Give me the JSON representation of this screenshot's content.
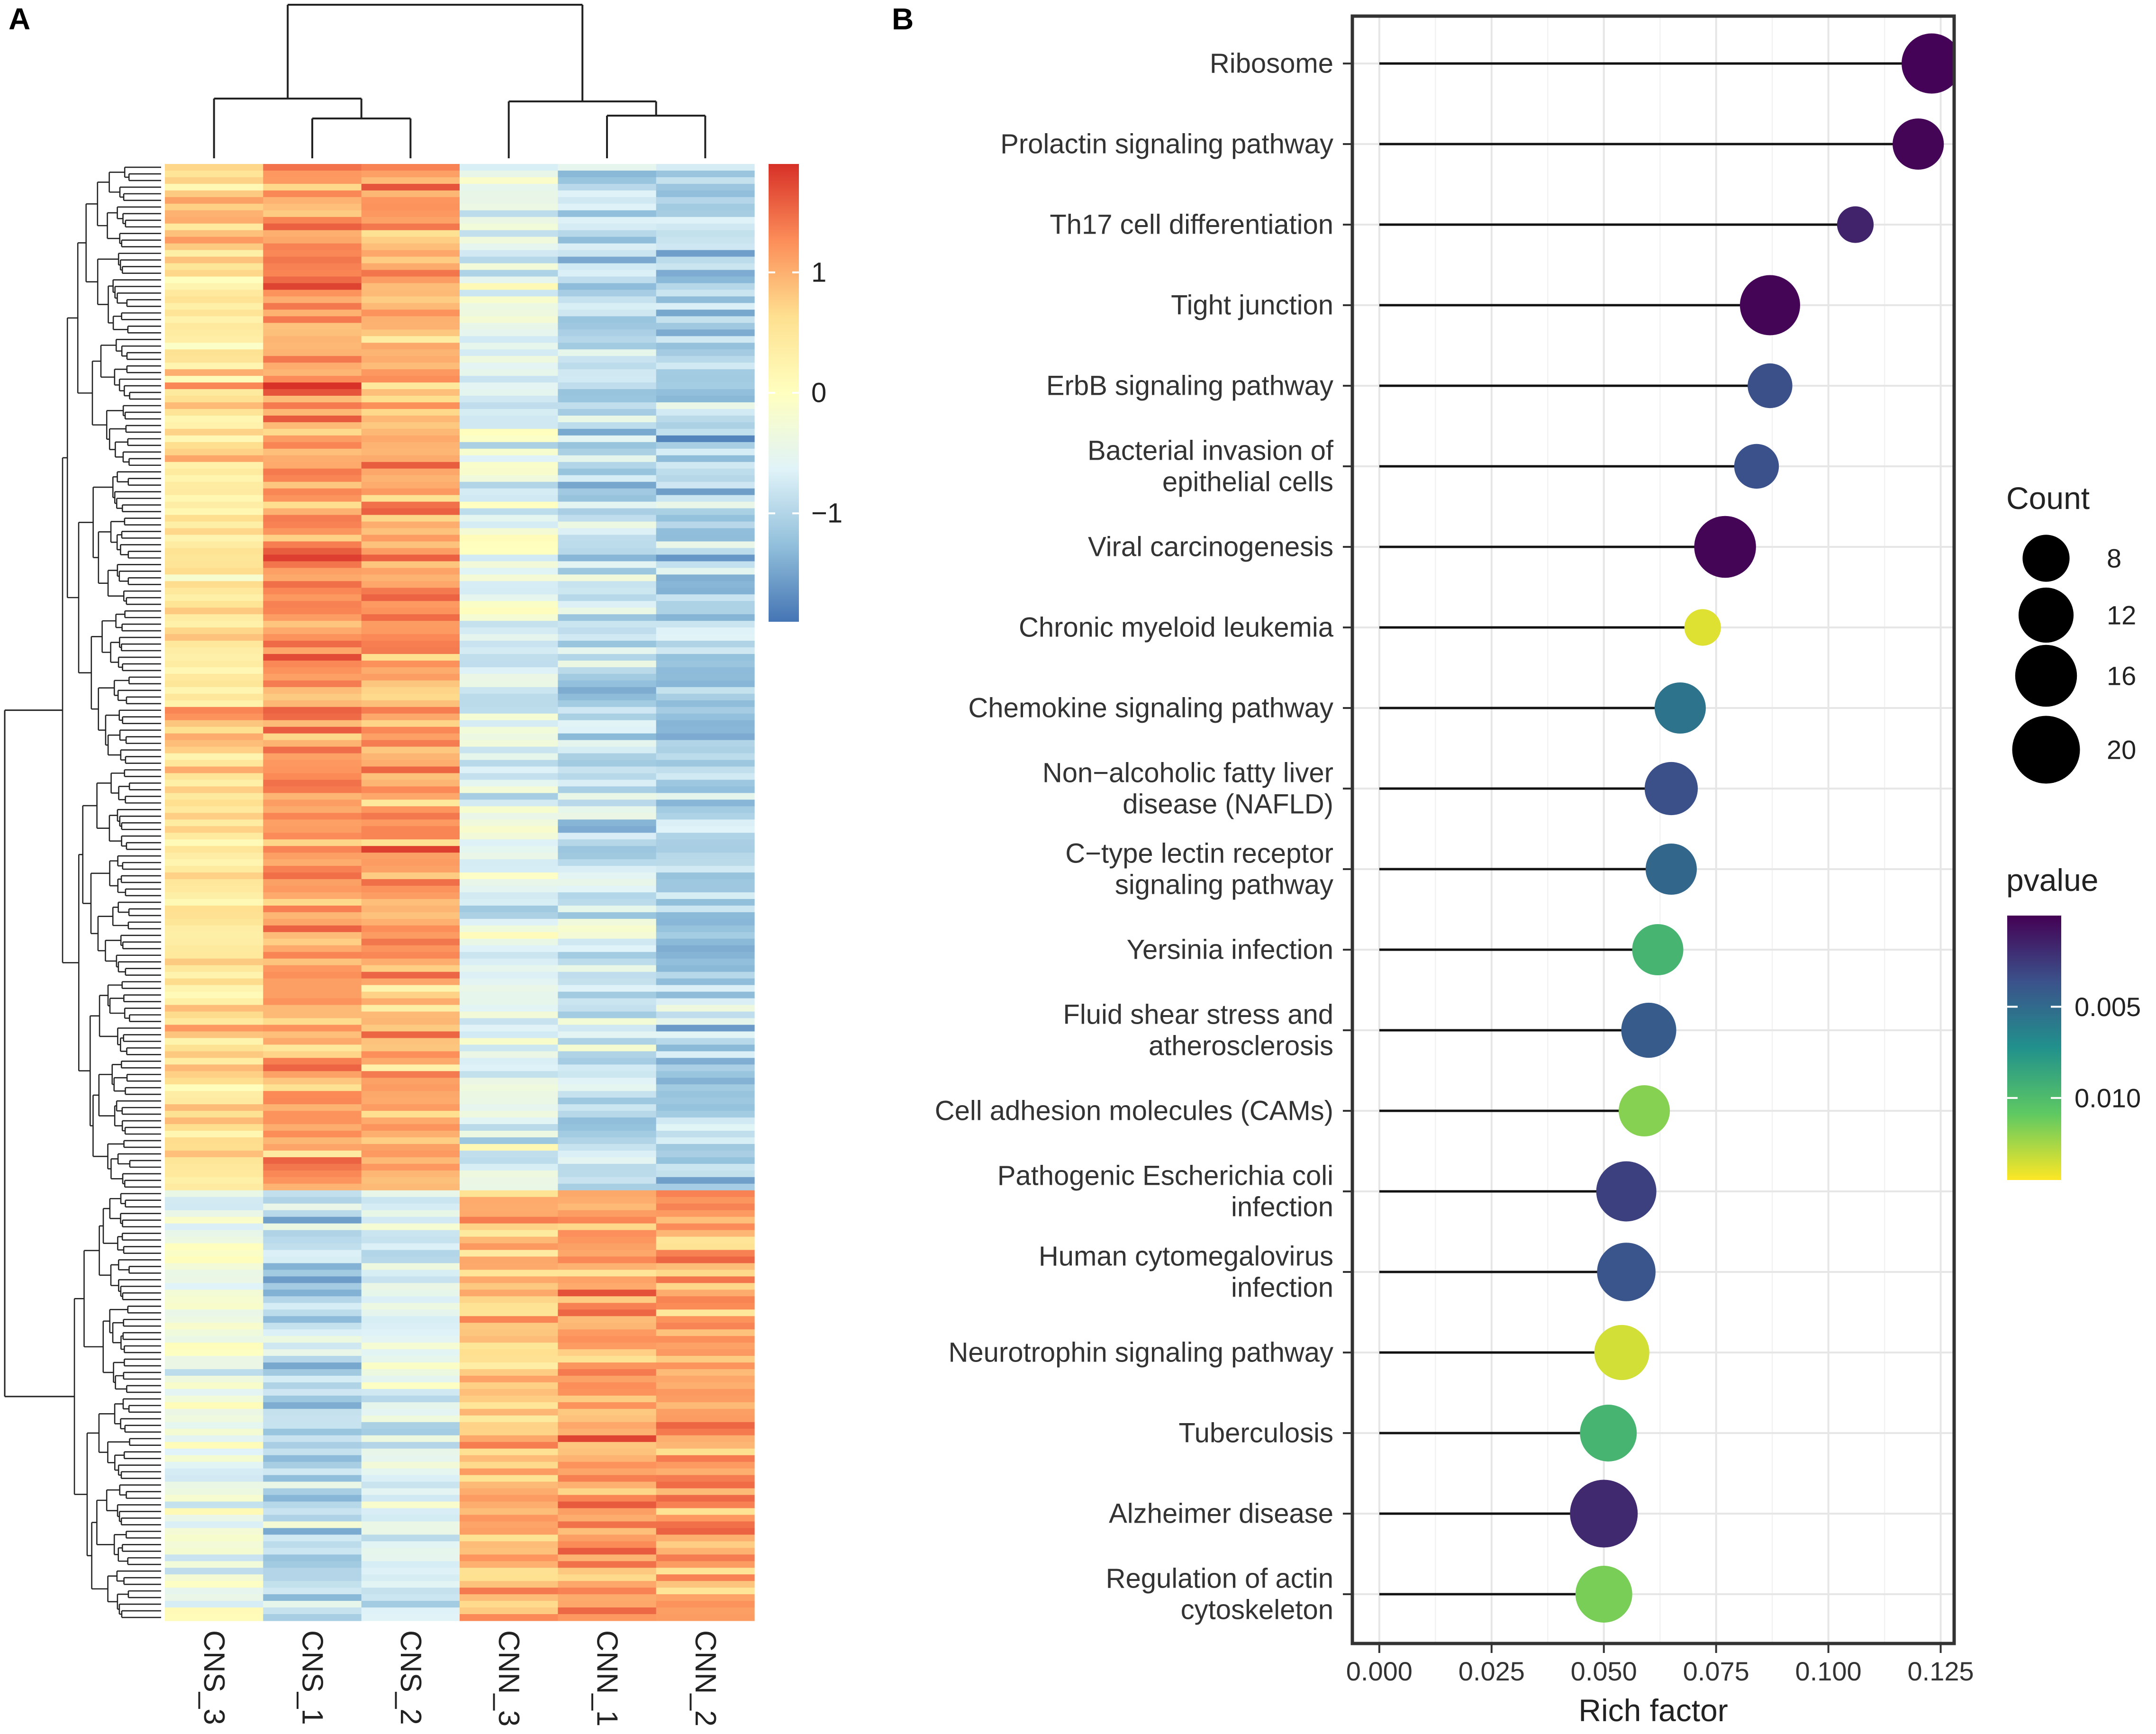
{
  "panel_a": {
    "label": "A",
    "samples": [
      "CNS_3",
      "CNS_1",
      "CNS_2",
      "CNN_3",
      "CNN_1",
      "CNN_2"
    ],
    "legend_ticks": [
      {
        "value": 1,
        "label": "1"
      },
      {
        "value": 0,
        "label": "0"
      },
      {
        "value": -1,
        "label": "−1"
      }
    ],
    "legend_range": [
      -1.9,
      1.9
    ],
    "colors": [
      "#4575b4",
      "#91bfdb",
      "#e0f3f8",
      "#ffffbf",
      "#fee090",
      "#fc8d59",
      "#d73027"
    ]
  },
  "panel_b": {
    "label": "B",
    "chart_data": {
      "type": "scatter",
      "style": "lollipop",
      "xlabel": "Rich factor",
      "ylabel": "",
      "xlim": [
        -0.006,
        0.128
      ],
      "xticks": [
        {
          "value": 0.0,
          "label": "0.000"
        },
        {
          "value": 0.025,
          "label": "0.025"
        },
        {
          "value": 0.05,
          "label": "0.050"
        },
        {
          "value": 0.075,
          "label": "0.075"
        },
        {
          "value": 0.1,
          "label": "0.100"
        },
        {
          "value": 0.125,
          "label": "0.125"
        }
      ],
      "grid": true,
      "legend": {
        "size_title": "Count",
        "size_entries": [
          {
            "value": 8,
            "label": "8"
          },
          {
            "value": 12,
            "label": "12"
          },
          {
            "value": 16,
            "label": "16"
          },
          {
            "value": 20,
            "label": "20"
          }
        ],
        "color_title": "pvalue",
        "color_ticks": [
          {
            "value": 0.005,
            "label": "0.005"
          },
          {
            "value": 0.01,
            "label": "0.010"
          }
        ],
        "color_range": [
          0.0,
          0.0145
        ],
        "placement": "right"
      },
      "colormap": [
        "#440154",
        "#3b528b",
        "#21918c",
        "#5ec962",
        "#fde725"
      ],
      "pathways": [
        {
          "name": [
            "Ribosome"
          ],
          "rich_factor": 0.123,
          "count": 15,
          "pvalue": 0.0001
        },
        {
          "name": [
            "Prolactin signaling pathway"
          ],
          "rich_factor": 0.12,
          "count": 10,
          "pvalue": 0.0002
        },
        {
          "name": [
            "Th17 cell differentiation"
          ],
          "rich_factor": 0.106,
          "count": 4,
          "pvalue": 0.0015
        },
        {
          "name": [
            "Tight junction"
          ],
          "rich_factor": 0.087,
          "count": 15,
          "pvalue": 0.0002
        },
        {
          "name": [
            "ErbB signaling pathway"
          ],
          "rich_factor": 0.087,
          "count": 7,
          "pvalue": 0.0035
        },
        {
          "name": [
            "Bacterial invasion of",
            "epithelial cells"
          ],
          "rich_factor": 0.084,
          "count": 7,
          "pvalue": 0.0036
        },
        {
          "name": [
            "Viral carcinogenesis"
          ],
          "rich_factor": 0.077,
          "count": 16,
          "pvalue": 0.0002
        },
        {
          "name": [
            "Chronic myeloid leukemia"
          ],
          "rich_factor": 0.072,
          "count": 4,
          "pvalue": 0.0138
        },
        {
          "name": [
            "Chemokine signaling pathway"
          ],
          "rich_factor": 0.067,
          "count": 10,
          "pvalue": 0.0055
        },
        {
          "name": [
            "Non−alcoholic fatty liver",
            "disease (NAFLD)"
          ],
          "rich_factor": 0.065,
          "count": 11,
          "pvalue": 0.0035
        },
        {
          "name": [
            "C−type lectin receptor",
            "signaling pathway"
          ],
          "rich_factor": 0.065,
          "count": 10,
          "pvalue": 0.0048
        },
        {
          "name": [
            "Yersinia infection"
          ],
          "rich_factor": 0.062,
          "count": 10,
          "pvalue": 0.0095
        },
        {
          "name": [
            "Fluid shear stress and",
            "atherosclerosis"
          ],
          "rich_factor": 0.06,
          "count": 12,
          "pvalue": 0.0042
        },
        {
          "name": [
            "Cell adhesion molecules (CAMs)"
          ],
          "rich_factor": 0.059,
          "count": 10,
          "pvalue": 0.0118
        },
        {
          "name": [
            "Pathogenic Escherichia coli",
            "infection"
          ],
          "rich_factor": 0.055,
          "count": 15,
          "pvalue": 0.0028
        },
        {
          "name": [
            "Human cytomegalovirus",
            "infection"
          ],
          "rich_factor": 0.055,
          "count": 14,
          "pvalue": 0.0038
        },
        {
          "name": [
            "Neurotrophin signaling pathway"
          ],
          "rich_factor": 0.054,
          "count": 12,
          "pvalue": 0.0135
        },
        {
          "name": [
            "Tuberculosis"
          ],
          "rich_factor": 0.051,
          "count": 13,
          "pvalue": 0.0095
        },
        {
          "name": [
            "Alzheimer disease"
          ],
          "rich_factor": 0.05,
          "count": 20,
          "pvalue": 0.0018
        },
        {
          "name": [
            "Regulation of actin",
            "cytoskeleton"
          ],
          "rich_factor": 0.05,
          "count": 13,
          "pvalue": 0.0115
        }
      ]
    }
  }
}
